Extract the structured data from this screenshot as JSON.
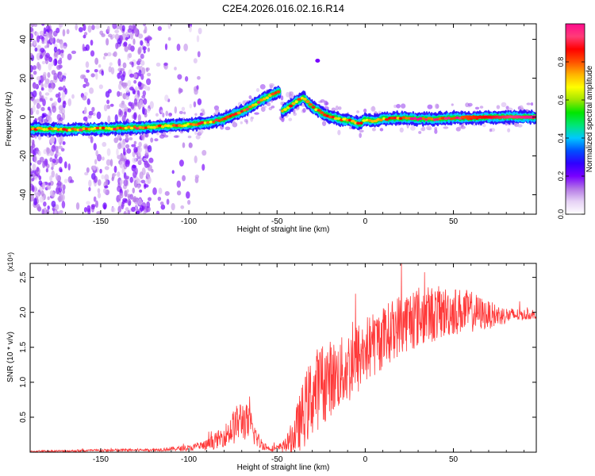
{
  "title": "C2E4.2026.016.02.16.R14",
  "chart_data": [
    {
      "type": "heatmap",
      "name": "spectrogram",
      "xlabel": "Height of straight line (km)",
      "ylabel": "Frequency (Hz)",
      "xlim": [
        -190,
        97
      ],
      "ylim": [
        -50,
        48
      ],
      "xticks": [
        -150,
        -100,
        -50,
        0,
        50
      ],
      "xtick_labels": [
        "-150",
        "-100",
        "-50",
        "0",
        "50"
      ],
      "yticks": [
        -40,
        -20,
        0,
        20,
        40
      ],
      "ytick_labels": [
        "-40",
        "-20",
        "0",
        "20",
        "40"
      ],
      "ridge": {
        "description": "dominant frequency track",
        "x": [
          -190,
          -170,
          -150,
          -130,
          -110,
          -100,
          -90,
          -80,
          -75,
          -70,
          -65,
          -60,
          -55,
          -50,
          -48
        ],
        "y": [
          -6,
          -6.5,
          -6,
          -5.5,
          -4.5,
          -4,
          -3,
          -1,
          1,
          3,
          5,
          8,
          10.5,
          12.5,
          13
        ]
      },
      "ridge2": {
        "x": [
          -47,
          -42,
          -38,
          -35,
          -32,
          -28,
          -22,
          -15,
          -8,
          -3,
          0,
          5,
          10,
          20,
          30,
          40,
          50,
          60,
          70,
          80,
          97
        ],
        "y": [
          3,
          6,
          8.5,
          10,
          7,
          4,
          1,
          -1,
          -2,
          -3.5,
          -1,
          -2,
          -1,
          -0.5,
          -1,
          -1,
          -0.5,
          -0.5,
          0,
          0,
          0
        ]
      },
      "colorbar": {
        "label": "Normalized spectral amplitude",
        "range": [
          0,
          1
        ],
        "ticks": [
          0.0,
          0.2,
          0.4,
          0.6,
          0.8
        ],
        "tick_labels": [
          "0.0",
          "0.2",
          "0.4",
          "0.6",
          "0.8"
        ],
        "colors": [
          "#ffffff",
          "#e6d2f5",
          "#b478e6",
          "#7800ff",
          "#3000ff",
          "#0050ff",
          "#00c8ff",
          "#00e678",
          "#00e600",
          "#a0e600",
          "#ffff00",
          "#ffb400",
          "#ff5000",
          "#ff0000",
          "#ff3c78",
          "#ff0a8c"
        ]
      }
    },
    {
      "type": "line",
      "name": "snr",
      "xlabel": "Height of straight line (km)",
      "ylabel": "SNR (10 * v/v)",
      "scale_label": "(x10⁴)",
      "xlim": [
        -190,
        97
      ],
      "ylim": [
        0,
        2.7
      ],
      "xticks": [
        -150,
        -100,
        -50,
        0,
        50
      ],
      "xtick_labels": [
        "-150",
        "-100",
        "-50",
        "0",
        "50"
      ],
      "yticks": [
        0.5,
        1.0,
        1.5,
        2.0,
        2.5
      ],
      "ytick_labels": [
        "0.5",
        "1.0",
        "1.5",
        "2.0",
        "2.5"
      ],
      "color": "#ff3a3a",
      "envelope": {
        "x": [
          -190,
          -150,
          -120,
          -110,
          -100,
          -90,
          -80,
          -75,
          -70,
          -65,
          -60,
          -55,
          -50,
          -45,
          -40,
          -35,
          -30,
          -25,
          -20,
          -15,
          -10,
          -5,
          0,
          10,
          20,
          30,
          40,
          50,
          60,
          70,
          80,
          90,
          97
        ],
        "base": [
          0.01,
          0.02,
          0.03,
          0.04,
          0.05,
          0.08,
          0.2,
          0.3,
          0.42,
          0.32,
          0.12,
          0.05,
          0.04,
          0.08,
          0.2,
          0.45,
          0.7,
          0.85,
          0.95,
          1.0,
          1.1,
          1.2,
          1.35,
          1.55,
          1.75,
          1.85,
          1.9,
          1.95,
          1.95,
          1.92,
          1.93,
          1.95,
          1.95
        ],
        "amp": [
          0.01,
          0.02,
          0.02,
          0.03,
          0.04,
          0.08,
          0.15,
          0.25,
          0.3,
          0.25,
          0.1,
          0.04,
          0.05,
          0.1,
          0.3,
          0.5,
          0.6,
          0.6,
          0.55,
          0.5,
          0.55,
          0.55,
          0.5,
          0.45,
          0.45,
          0.45,
          0.4,
          0.35,
          0.3,
          0.2,
          0.12,
          0.08,
          0.05
        ]
      }
    }
  ]
}
